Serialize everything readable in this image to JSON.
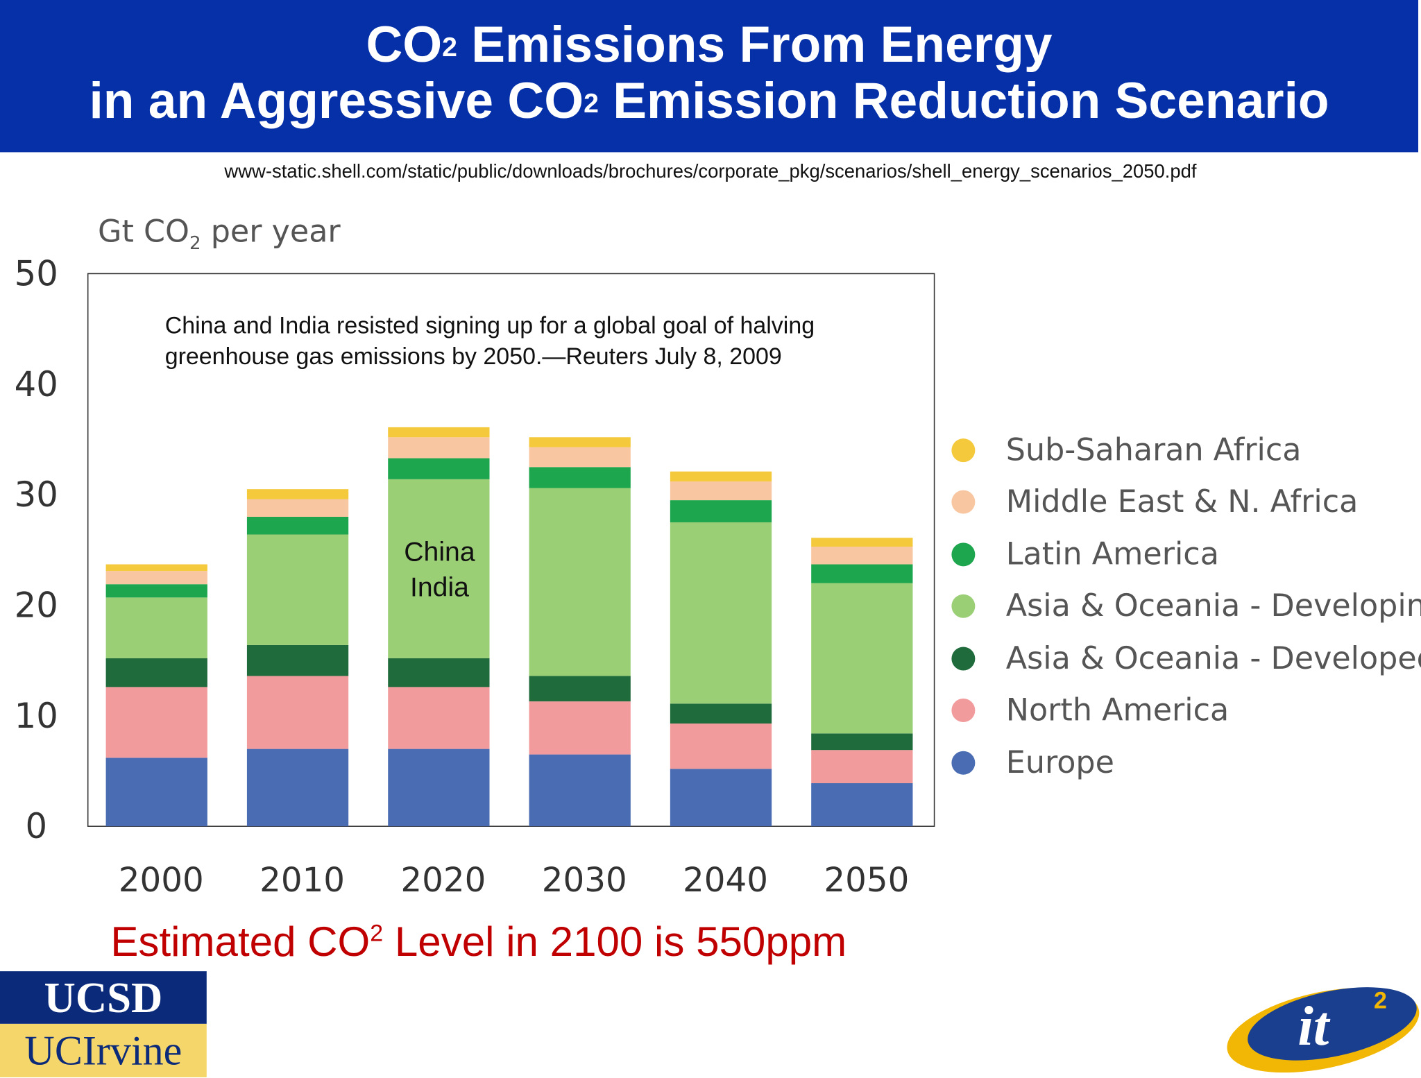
{
  "header": {
    "line1_a": "CO",
    "line1_sup": "2",
    "line1_b": " Emissions From Energy",
    "line2_a": "in an Aggressive CO",
    "line2_sup": "2",
    "line2_b": " Emission Reduction Scenario"
  },
  "source_url": "www-static.shell.com/static/public/downloads/brochures/corporate_pkg/scenarios/shell_energy_scenarios_2050.pdf",
  "annotation": "China and India resisted signing up for a global goal of halving greenhouse gas emissions by 2050.—Reuters July 8, 2009",
  "bar_label": {
    "line1": "China",
    "line2": "India"
  },
  "footer": {
    "a": "Estimated CO",
    "sup": "2",
    "b": " Level in  2100 is 550ppm"
  },
  "logos": {
    "ucsd": "UCSD",
    "uci": "UCIrvine",
    "it2": "it2"
  },
  "chart_data": {
    "type": "bar",
    "stacked": true,
    "ylabel": {
      "a": "Gt CO",
      "sub": "2",
      "b": " per year"
    },
    "ylim": [
      0,
      50
    ],
    "yticks": [
      "0",
      "10",
      "20",
      "30",
      "40",
      "50"
    ],
    "categories": [
      "2000",
      "2010",
      "2020",
      "2030",
      "2040",
      "2050"
    ],
    "legend_position": "right",
    "grid": false,
    "series": [
      {
        "name": "Europe",
        "color": "#4a6cb3",
        "values": [
          6.2,
          7.0,
          7.0,
          6.5,
          5.2,
          3.9
        ]
      },
      {
        "name": "North America",
        "color": "#f29b9d",
        "values": [
          6.4,
          6.6,
          5.6,
          4.8,
          4.1,
          3.0
        ]
      },
      {
        "name": "Asia & Oceania - Developed",
        "color": "#1f6b3c",
        "values": [
          2.6,
          2.8,
          2.6,
          2.3,
          1.8,
          1.5
        ]
      },
      {
        "name": "Asia & Oceania - Developing",
        "color": "#9bcf76",
        "values": [
          5.5,
          10.0,
          16.2,
          17.0,
          16.4,
          13.6
        ]
      },
      {
        "name": "Latin America",
        "color": "#1ea64f",
        "values": [
          1.2,
          1.6,
          1.9,
          1.9,
          2.0,
          1.7
        ]
      },
      {
        "name": "Middle East & N. Africa",
        "color": "#f8c6a0",
        "values": [
          1.2,
          1.6,
          1.9,
          1.8,
          1.7,
          1.6
        ]
      },
      {
        "name": "Sub-Saharan Africa",
        "color": "#f4c93c",
        "values": [
          0.6,
          0.9,
          0.9,
          0.9,
          0.9,
          0.8
        ]
      }
    ]
  }
}
